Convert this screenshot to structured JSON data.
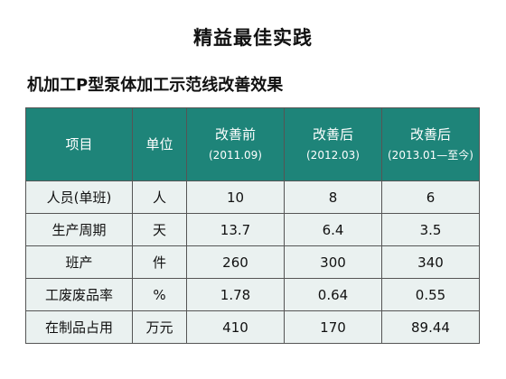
{
  "slide": {
    "title": "精益最佳实践",
    "table_title": "机加工P型泵体加工示范线改善效果"
  },
  "table": {
    "headers": [
      {
        "label": "项目",
        "sub": ""
      },
      {
        "label": "单位",
        "sub": ""
      },
      {
        "label": "改善前",
        "sub": "(2011.09)"
      },
      {
        "label": "改善后",
        "sub": "(2012.03)"
      },
      {
        "label": "改善后",
        "sub": "(2013.01—至今)"
      }
    ],
    "rows": [
      {
        "item": "人员(单班)",
        "unit": "人",
        "before": "10",
        "after_2012": "8",
        "after_2013": "6"
      },
      {
        "item": "生产周期",
        "unit": "天",
        "before": "13.7",
        "after_2012": "6.4",
        "after_2013": "3.5"
      },
      {
        "item": "班产",
        "unit": "件",
        "before": "260",
        "after_2012": "300",
        "after_2013": "340"
      },
      {
        "item": "工废废品率",
        "unit": "%",
        "before": "1.78",
        "after_2012": "0.64",
        "after_2013": "0.55"
      },
      {
        "item": "在制品占用",
        "unit": "万元",
        "before": "410",
        "after_2012": "170",
        "after_2013": "89.44"
      }
    ]
  },
  "colors": {
    "header_bg": "#1e8479",
    "body_bg": "#eaf1f0"
  }
}
